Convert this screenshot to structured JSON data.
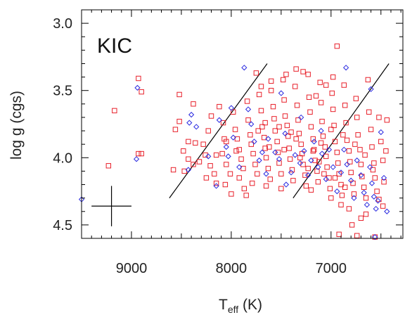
{
  "chart_data": {
    "type": "scatter",
    "panel_label": "KIC",
    "xlabel": {
      "main": "T",
      "sub": "eff",
      "suffix": " (K)"
    },
    "ylabel": "log g (cgs)",
    "xlim": [
      9500,
      6280
    ],
    "ylim": [
      2.9,
      4.6
    ],
    "x_reversed": true,
    "y_reversed": true,
    "x_ticks": [
      9000,
      8000,
      7000
    ],
    "y_ticks": [
      3.0,
      3.5,
      4.0,
      4.5
    ],
    "y_tick_labels": [
      "3.0",
      "3.5",
      "4.0",
      "4.5"
    ],
    "colors": {
      "red_series": "#e8202a",
      "blue_series": "#2a2ae0",
      "lines": "#000000"
    },
    "boundary_lines": [
      {
        "x1": 8620,
        "y1": 4.3,
        "x2": 7640,
        "y2": 3.3
      },
      {
        "x1": 7380,
        "y1": 4.3,
        "x2": 6420,
        "y2": 3.3
      }
    ],
    "error_bar": {
      "x": 9200,
      "y": 4.36,
      "dx": 200,
      "dy": 0.15
    },
    "series": [
      {
        "marker": "square",
        "color": "#e8202a",
        "points": [
          [
            8930,
            3.41
          ],
          [
            8900,
            3.51
          ],
          [
            9170,
            3.65
          ],
          [
            8930,
            3.97
          ],
          [
            8900,
            3.97
          ],
          [
            9230,
            4.06
          ],
          [
            8520,
            3.53
          ],
          [
            8520,
            3.73
          ],
          [
            8560,
            3.79
          ],
          [
            8380,
            3.6
          ],
          [
            8430,
            3.88
          ],
          [
            8360,
            3.89
          ],
          [
            8480,
            3.95
          ],
          [
            8430,
            4.01
          ],
          [
            8320,
            4.03
          ],
          [
            8380,
            4.05
          ],
          [
            8470,
            4.1
          ],
          [
            8580,
            4.09
          ],
          [
            8280,
            3.9
          ],
          [
            8230,
            3.8
          ],
          [
            8260,
            3.98
          ],
          [
            8210,
            4.06
          ],
          [
            8170,
            4.12
          ],
          [
            8250,
            4.15
          ],
          [
            8150,
            4.19
          ],
          [
            8200,
            3.69
          ],
          [
            8120,
            3.62
          ],
          [
            8080,
            3.74
          ],
          [
            8070,
            3.86
          ],
          [
            8090,
            3.97
          ],
          [
            8050,
            4.05
          ],
          [
            8010,
            4.12
          ],
          [
            8060,
            4.2
          ],
          [
            8000,
            4.27
          ],
          [
            7980,
            3.66
          ],
          [
            7960,
            3.79
          ],
          [
            7940,
            3.86
          ],
          [
            7920,
            3.94
          ],
          [
            7900,
            4.01
          ],
          [
            7880,
            4.08
          ],
          [
            7920,
            4.15
          ],
          [
            7870,
            4.23
          ],
          [
            7840,
            3.58
          ],
          [
            7830,
            3.72
          ],
          [
            7810,
            3.83
          ],
          [
            7800,
            3.9
          ],
          [
            7780,
            3.97
          ],
          [
            7760,
            4.05
          ],
          [
            7740,
            4.12
          ],
          [
            7790,
            4.19
          ],
          [
            7720,
            3.53
          ],
          [
            7700,
            3.65
          ],
          [
            7690,
            3.77
          ],
          [
            7670,
            3.85
          ],
          [
            7660,
            3.93
          ],
          [
            7650,
            4.0
          ],
          [
            7630,
            4.08
          ],
          [
            7610,
            4.16
          ],
          [
            7600,
            3.5
          ],
          [
            7580,
            3.62
          ],
          [
            7570,
            3.71
          ],
          [
            7560,
            3.8
          ],
          [
            7540,
            3.88
          ],
          [
            7530,
            3.96
          ],
          [
            7520,
            4.04
          ],
          [
            7500,
            4.12
          ],
          [
            7480,
            3.42
          ],
          [
            7470,
            3.57
          ],
          [
            7460,
            3.69
          ],
          [
            7440,
            3.76
          ],
          [
            7430,
            3.84
          ],
          [
            7420,
            3.93
          ],
          [
            7410,
            4.01
          ],
          [
            7390,
            4.09
          ],
          [
            7380,
            4.17
          ],
          [
            7360,
            3.47
          ],
          [
            7340,
            3.61
          ],
          [
            7330,
            3.72
          ],
          [
            7320,
            3.82
          ],
          [
            7300,
            3.9
          ],
          [
            7290,
            3.97
          ],
          [
            7280,
            4.05
          ],
          [
            7260,
            4.13
          ],
          [
            7250,
            4.21
          ],
          [
            7230,
            3.38
          ],
          [
            7220,
            3.55
          ],
          [
            7210,
            3.66
          ],
          [
            7200,
            3.77
          ],
          [
            7180,
            3.86
          ],
          [
            7170,
            3.94
          ],
          [
            7160,
            4.02
          ],
          [
            7140,
            4.1
          ],
          [
            7130,
            4.18
          ],
          [
            7110,
            3.44
          ],
          [
            7100,
            3.59
          ],
          [
            7090,
            3.73
          ],
          [
            7080,
            3.84
          ],
          [
            7060,
            3.92
          ],
          [
            7050,
            3.99
          ],
          [
            7040,
            4.07
          ],
          [
            7020,
            4.15
          ],
          [
            7010,
            4.23
          ],
          [
            6990,
            3.52
          ],
          [
            6980,
            3.64
          ],
          [
            6970,
            3.76
          ],
          [
            6960,
            3.88
          ],
          [
            6940,
            3.96
          ],
          [
            6930,
            4.04
          ],
          [
            6920,
            4.12
          ],
          [
            6900,
            4.2
          ],
          [
            6890,
            4.28
          ],
          [
            6870,
            3.46
          ],
          [
            6860,
            3.61
          ],
          [
            6850,
            3.74
          ],
          [
            6840,
            3.87
          ],
          [
            6820,
            3.95
          ],
          [
            6810,
            4.03
          ],
          [
            6800,
            4.11
          ],
          [
            6780,
            4.19
          ],
          [
            6770,
            4.27
          ],
          [
            6750,
            3.56
          ],
          [
            6740,
            3.7
          ],
          [
            6730,
            3.83
          ],
          [
            6710,
            3.94
          ],
          [
            6700,
            4.05
          ],
          [
            6690,
            4.14
          ],
          [
            6670,
            4.22
          ],
          [
            6650,
            4.3
          ],
          [
            6630,
            3.42
          ],
          [
            6620,
            3.66
          ],
          [
            6600,
            3.79
          ],
          [
            6590,
            3.92
          ],
          [
            6570,
            4.04
          ],
          [
            6560,
            4.15
          ],
          [
            6540,
            4.25
          ],
          [
            6520,
            3.7
          ],
          [
            6500,
            3.88
          ],
          [
            6480,
            4.02
          ],
          [
            6470,
            4.18
          ],
          [
            6450,
            3.95
          ],
          [
            6440,
            3.72
          ],
          [
            6940,
            3.17
          ],
          [
            7450,
            3.38
          ],
          [
            7600,
            3.43
          ],
          [
            7700,
            3.47
          ],
          [
            7750,
            3.37
          ],
          [
            7350,
            3.34
          ],
          [
            7280,
            3.36
          ],
          [
            7050,
            3.46
          ],
          [
            6980,
            3.4
          ],
          [
            7150,
            3.54
          ],
          [
            6900,
            4.35
          ],
          [
            6820,
            4.38
          ],
          [
            6790,
            4.5
          ],
          [
            6920,
            4.57
          ],
          [
            6740,
            4.58
          ],
          [
            6560,
            4.59
          ],
          [
            6700,
            4.45
          ],
          [
            6650,
            4.42
          ],
          [
            7000,
            4.3
          ],
          [
            7200,
            4.24
          ],
          [
            7500,
            4.23
          ],
          [
            7650,
            4.21
          ],
          [
            7850,
            4.28
          ],
          [
            7620,
            3.92
          ],
          [
            7520,
            3.77
          ],
          [
            7400,
            3.81
          ],
          [
            7350,
            3.86
          ],
          [
            7180,
            3.95
          ],
          [
            7100,
            3.89
          ],
          [
            7000,
            3.79
          ],
          [
            6880,
            3.83
          ],
          [
            6760,
            3.9
          ],
          [
            6660,
            3.98
          ],
          [
            6580,
            4.09
          ],
          [
            6520,
            4.31
          ],
          [
            6480,
            4.36
          ],
          [
            7950,
            3.95
          ],
          [
            8050,
            3.88
          ],
          [
            8150,
            3.98
          ],
          [
            7730,
            3.8
          ],
          [
            7660,
            3.74
          ],
          [
            7470,
            3.94
          ],
          [
            7310,
            4.0
          ],
          [
            7230,
            4.08
          ],
          [
            7120,
            4.03
          ],
          [
            7070,
            4.12
          ],
          [
            6960,
            4.15
          ],
          [
            6860,
            4.22
          ]
        ]
      },
      {
        "marker": "diamond",
        "color": "#2a2ae0",
        "points": [
          [
            9500,
            4.31
          ],
          [
            8940,
            3.48
          ],
          [
            8950,
            4.01
          ],
          [
            8420,
            3.74
          ],
          [
            8350,
            3.77
          ],
          [
            8430,
            4.09
          ],
          [
            8400,
            3.68
          ],
          [
            8230,
            3.99
          ],
          [
            8150,
            4.21
          ],
          [
            8120,
            3.72
          ],
          [
            8050,
            3.92
          ],
          [
            8030,
            3.99
          ],
          [
            7980,
            3.85
          ],
          [
            7920,
            4.07
          ],
          [
            7870,
            3.33
          ],
          [
            7830,
            3.64
          ],
          [
            7770,
            3.88
          ],
          [
            7720,
            4.02
          ],
          [
            7690,
            3.96
          ],
          [
            7630,
            3.86
          ],
          [
            7560,
            3.96
          ],
          [
            7520,
            4.01
          ],
          [
            7460,
            3.82
          ],
          [
            7400,
            4.11
          ],
          [
            7360,
            3.98
          ],
          [
            7310,
            4.04
          ],
          [
            7270,
            3.95
          ],
          [
            7230,
            4.13
          ],
          [
            7200,
            4.02
          ],
          [
            7170,
            3.88
          ],
          [
            7130,
            4.07
          ],
          [
            7090,
            3.97
          ],
          [
            7050,
            4.16
          ],
          [
            7020,
            3.94
          ],
          [
            6980,
            4.07
          ],
          [
            6940,
            4.25
          ],
          [
            6900,
            4.11
          ],
          [
            6870,
            3.94
          ],
          [
            6840,
            4.05
          ],
          [
            6800,
            4.17
          ],
          [
            6770,
            4.3
          ],
          [
            6740,
            4.02
          ],
          [
            6700,
            4.13
          ],
          [
            6670,
            4.26
          ],
          [
            6640,
            4.35
          ],
          [
            6610,
            4.07
          ],
          [
            6590,
            4.19
          ],
          [
            6570,
            4.29
          ],
          [
            6550,
            4.38
          ],
          [
            6530,
            4.32
          ],
          [
            6500,
            3.81
          ],
          [
            6470,
            4.15
          ],
          [
            6440,
            4.4
          ],
          [
            6560,
            4.59
          ],
          [
            6850,
            3.33
          ],
          [
            6600,
            3.49
          ],
          [
            7500,
            3.52
          ],
          [
            7300,
            3.7
          ],
          [
            7100,
            3.8
          ],
          [
            7800,
            3.75
          ],
          [
            8000,
            3.63
          ],
          [
            7650,
            4.12
          ],
          [
            7450,
            4.2
          ]
        ]
      }
    ]
  }
}
